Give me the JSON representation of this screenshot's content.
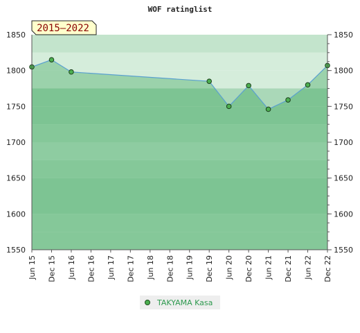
{
  "chart_data": {
    "type": "area",
    "title": "WOF ratinglist",
    "badge": "2015–2022",
    "x": [
      "Jun 15",
      "Dec 15",
      "Jun 16",
      "Dec 16",
      "Jun 17",
      "Dec 17",
      "Jun 18",
      "Dec 18",
      "Jun 19",
      "Dec 19",
      "Jun 20",
      "Dec 20",
      "Jun 21",
      "Dec 21",
      "Jun 22",
      "Dec 22"
    ],
    "series": [
      {
        "name": "TAKYAMA Kasa",
        "values": [
          1805,
          1815,
          1798,
          null,
          null,
          null,
          null,
          null,
          null,
          1785,
          1750,
          1779,
          1746,
          1759,
          1780,
          1807
        ]
      }
    ],
    "ylim": [
      1550,
      1850
    ],
    "yticks": [
      1550,
      1600,
      1650,
      1700,
      1750,
      1800,
      1850
    ],
    "grid": true,
    "legend": "bottom-center",
    "colors": {
      "line": "#5aa0d0",
      "fill": "#7dc493",
      "marker": "#4caf50",
      "band_dark": "#7dc493",
      "band_mid": "#8fcc9f",
      "band_light": "#a3d6b1",
      "band_pale": "#bfe3c8",
      "badge_bg": "#ffffcc"
    }
  }
}
